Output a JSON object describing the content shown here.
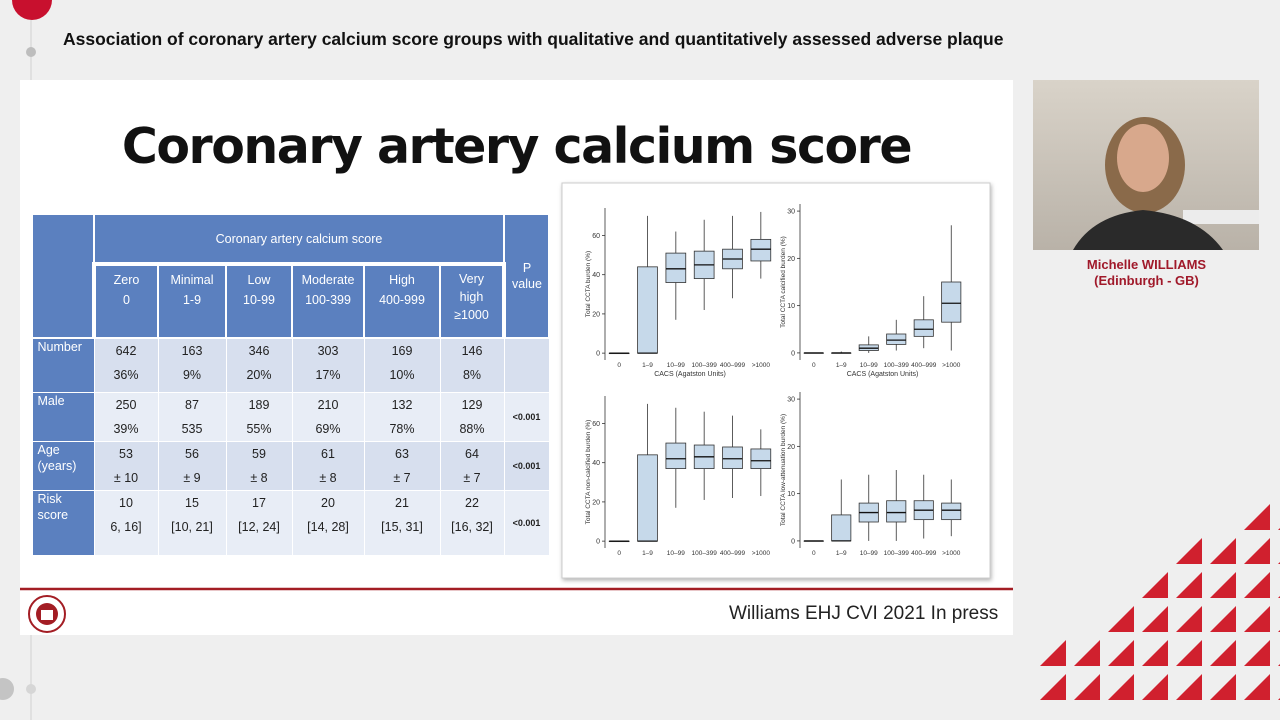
{
  "header": {
    "title": "Association of coronary artery calcium score groups with qualitative and quantitatively assessed adverse plaque"
  },
  "presenter": {
    "name": "Michelle WILLIAMS",
    "location": "(Edinburgh - GB)"
  },
  "slide": {
    "title": "Coronary artery calcium score",
    "citation": "Williams EHJ CVI 2021 In press",
    "table": {
      "group_header": "Coronary artery calcium score",
      "p_header": "P value",
      "columns": [
        [
          "Zero",
          "0"
        ],
        [
          "Minimal",
          "1-9"
        ],
        [
          "Low",
          "10-99"
        ],
        [
          "Moderate",
          "100-399"
        ],
        [
          "High",
          "400-999"
        ],
        [
          "Very",
          "high",
          "≥1000"
        ]
      ],
      "rows": [
        {
          "label": [
            "Number"
          ],
          "cells": [
            [
              "642",
              "36%"
            ],
            [
              "163",
              "9%"
            ],
            [
              "346",
              "20%"
            ],
            [
              "303",
              "17%"
            ],
            [
              "169",
              "10%"
            ],
            [
              "146",
              "8%"
            ]
          ]
        },
        {
          "label": [
            "Male"
          ],
          "cells": [
            [
              "250",
              "39%"
            ],
            [
              "87",
              "535"
            ],
            [
              "189",
              "55%"
            ],
            [
              "210",
              "69%"
            ],
            [
              "132",
              "78%"
            ],
            [
              "129",
              "88%"
            ]
          ],
          "p": "<0.001"
        },
        {
          "label": [
            "Age",
            "(years)"
          ],
          "cells": [
            [
              "53",
              "± 10"
            ],
            [
              "56",
              "± 9"
            ],
            [
              "59",
              "± 8"
            ],
            [
              "61",
              "± 8"
            ],
            [
              "63",
              "± 7"
            ],
            [
              "64",
              "± 7"
            ]
          ],
          "p": "<0.001"
        },
        {
          "label": [
            "Risk",
            "score"
          ],
          "cells": [
            [
              "10",
              "6, 16]"
            ],
            [
              "15",
              "[10, 21]"
            ],
            [
              "17",
              "[12, 24]"
            ],
            [
              "20",
              "[14, 28]"
            ],
            [
              "21",
              "[15, 31]"
            ],
            [
              "22",
              "[16, 32]"
            ]
          ],
          "p": "<0.001"
        }
      ]
    },
    "charts": [
      {
        "type": "box",
        "ylabel": "Total CCTA burden (%)",
        "xlabel": "CACS (Agatston Units)",
        "categories": [
          "0",
          "1–9",
          "10–99",
          "100–399",
          "400–999",
          ">1000"
        ],
        "ylim": [
          -3.5,
          74
        ],
        "yticks": [
          0,
          20,
          40,
          60
        ],
        "boxes": [
          {
            "low": 0,
            "q1": 0,
            "median": 0,
            "q3": 0,
            "high": 0
          },
          {
            "low": 0,
            "q1": 0,
            "median": 0,
            "q3": 44,
            "high": 70
          },
          {
            "low": 17,
            "q1": 36,
            "median": 43,
            "q3": 51,
            "high": 62
          },
          {
            "low": 22,
            "q1": 38,
            "median": 45,
            "q3": 52,
            "high": 68
          },
          {
            "low": 28,
            "q1": 43,
            "median": 48,
            "q3": 53,
            "high": 70
          },
          {
            "low": 38,
            "q1": 47,
            "median": 53,
            "q3": 58,
            "high": 72
          }
        ]
      },
      {
        "type": "box",
        "ylabel": "Total CCTA calcified burden (%)",
        "xlabel": "CACS (Agatston Units)",
        "categories": [
          "0",
          "1–9",
          "10–99",
          "100–399",
          "400–999",
          ">1000"
        ],
        "ylim": [
          -1.5,
          31.5
        ],
        "yticks": [
          0,
          10,
          20,
          30
        ],
        "boxes": [
          {
            "low": 0,
            "q1": 0,
            "median": 0,
            "q3": 0,
            "high": 0
          },
          {
            "low": 0,
            "q1": 0,
            "median": 0,
            "q3": 0,
            "high": 0.3
          },
          {
            "low": 0,
            "q1": 0.5,
            "median": 1,
            "q3": 1.7,
            "high": 3.5
          },
          {
            "low": 0.5,
            "q1": 1.8,
            "median": 2.7,
            "q3": 4,
            "high": 7
          },
          {
            "low": 1,
            "q1": 3.5,
            "median": 5,
            "q3": 7,
            "high": 12
          },
          {
            "low": 0.5,
            "q1": 6.5,
            "median": 10.5,
            "q3": 15,
            "high": 27
          }
        ]
      },
      {
        "type": "box",
        "ylabel": "Total CCTA non-calcified burden (%)",
        "categories": [
          "0",
          "1–9",
          "10–99",
          "100–399",
          "400–999",
          ">1000"
        ],
        "ylim": [
          -3.5,
          74
        ],
        "yticks": [
          0,
          20,
          40,
          60
        ],
        "boxes": [
          {
            "low": 0,
            "q1": 0,
            "median": 0,
            "q3": 0,
            "high": 0
          },
          {
            "low": 0,
            "q1": 0,
            "median": 0,
            "q3": 44,
            "high": 70
          },
          {
            "low": 17,
            "q1": 37,
            "median": 42,
            "q3": 50,
            "high": 68
          },
          {
            "low": 21,
            "q1": 37,
            "median": 43,
            "q3": 49,
            "high": 66
          },
          {
            "low": 22,
            "q1": 37,
            "median": 42,
            "q3": 48,
            "high": 64
          },
          {
            "low": 23,
            "q1": 37,
            "median": 41,
            "q3": 47,
            "high": 57
          }
        ]
      },
      {
        "type": "box",
        "ylabel": "Total CCTA low-attenuation burden (%)",
        "categories": [
          "0",
          "1–9",
          "10–99",
          "100–399",
          "400–999",
          ">1000"
        ],
        "ylim": [
          -1.5,
          31.5
        ],
        "yticks": [
          0,
          10,
          20,
          30
        ],
        "boxes": [
          {
            "low": 0,
            "q1": 0,
            "median": 0,
            "q3": 0,
            "high": 0
          },
          {
            "low": 0,
            "q1": 0,
            "median": 0,
            "q3": 5.5,
            "high": 13
          },
          {
            "low": 0,
            "q1": 4,
            "median": 6,
            "q3": 8,
            "high": 14
          },
          {
            "low": 0,
            "q1": 4,
            "median": 6,
            "q3": 8.5,
            "high": 15
          },
          {
            "low": 0.5,
            "q1": 4.5,
            "median": 6.5,
            "q3": 8.5,
            "high": 14
          },
          {
            "low": 1,
            "q1": 4.5,
            "median": 6.5,
            "q3": 8,
            "high": 13
          }
        ]
      }
    ]
  }
}
